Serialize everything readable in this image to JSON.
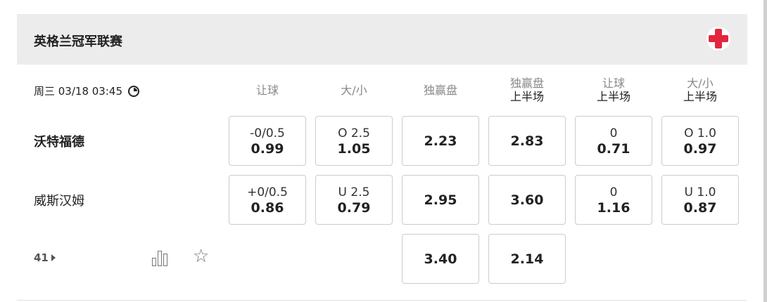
{
  "league": {
    "title": "英格兰冠军联赛",
    "logo": "red-cross-logo",
    "accent": "#e3263d"
  },
  "match": {
    "datetime": "周三 03/18 03:45",
    "more_count": "41"
  },
  "columns": [
    {
      "l1": "让球",
      "l2": ""
    },
    {
      "l1": "大/小",
      "l2": ""
    },
    {
      "l1": "独赢盘",
      "l2": ""
    },
    {
      "l1": "独赢盘",
      "l2": "上半场"
    },
    {
      "l1": "让球",
      "l2": "上半场"
    },
    {
      "l1": "大/小",
      "l2": "上半场"
    }
  ],
  "teams": [
    {
      "name": "沃特福德",
      "odds": [
        {
          "line": "-0/0.5",
          "val": "0.99"
        },
        {
          "line": "O 2.5",
          "val": "1.05"
        },
        {
          "line": "",
          "val": "2.23"
        },
        {
          "line": "",
          "val": "2.83"
        },
        {
          "line": "0",
          "val": "0.71"
        },
        {
          "line": "O 1.0",
          "val": "0.97"
        }
      ]
    },
    {
      "name": "威斯汉姆",
      "odds": [
        {
          "line": "+0/0.5",
          "val": "0.86"
        },
        {
          "line": "U 2.5",
          "val": "0.79"
        },
        {
          "line": "",
          "val": "2.95"
        },
        {
          "line": "",
          "val": "3.60"
        },
        {
          "line": "0",
          "val": "1.16"
        },
        {
          "line": "U 1.0",
          "val": "0.87"
        }
      ]
    }
  ],
  "draw": {
    "odds": [
      {
        "val": "3.40"
      },
      {
        "val": "2.14"
      }
    ]
  }
}
